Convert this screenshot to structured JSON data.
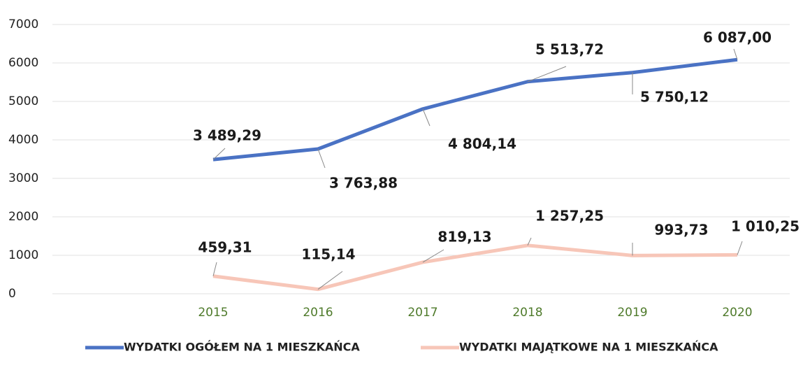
{
  "chart_data": {
    "type": "line",
    "categories": [
      "2015",
      "2016",
      "2017",
      "2018",
      "2019",
      "2020"
    ],
    "series": [
      {
        "name": "WYDATKI OGÓŁEM NA 1 MIESZKAŃCA",
        "color": "#4a72c4",
        "values": [
          3489.29,
          3763.88,
          4804.14,
          5513.72,
          5750.12,
          6087.0
        ],
        "value_labels": [
          "3 489,29",
          "3 763,88",
          "4 804,14",
          "5 513,72",
          "5 750,12",
          "6 087,00"
        ]
      },
      {
        "name": "WYDATKI MAJĄTKOWE NA 1 MIESZKAŃCA",
        "color": "#f7c6b8",
        "values": [
          459.31,
          115.14,
          819.13,
          1257.25,
          993.73,
          1010.25
        ],
        "value_labels": [
          "459,31",
          "115,14",
          "819,13",
          "1 257,25",
          "993,73",
          "1 010,25"
        ]
      }
    ],
    "ylim": [
      0,
      7000
    ],
    "yticks": [
      0,
      1000,
      2000,
      3000,
      4000,
      5000,
      6000,
      7000
    ],
    "grid": true,
    "legend": "bottom"
  }
}
